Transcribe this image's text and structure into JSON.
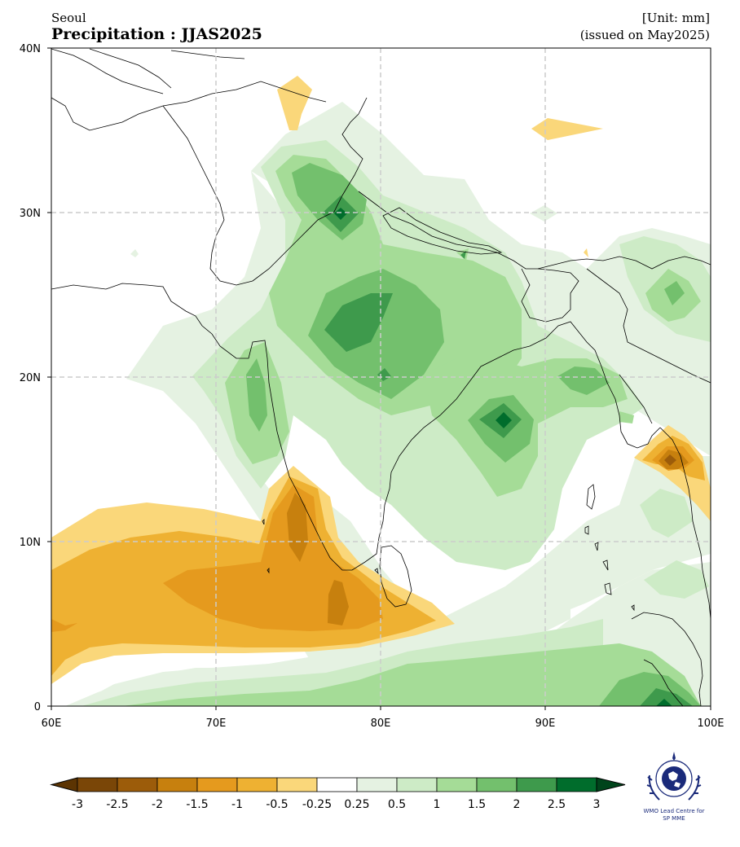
{
  "header": {
    "location": "Seoul",
    "title": "Precipitation : JJAS2025",
    "unit": "[Unit: mm]",
    "issued": "(issued on May2025)"
  },
  "map": {
    "lon_range": [
      60,
      100
    ],
    "lat_range": [
      0,
      40
    ],
    "x_ticks": [
      "60E",
      "70E",
      "80E",
      "90E",
      "100E"
    ],
    "y_ticks": [
      "0",
      "10N",
      "20N",
      "30N",
      "40N"
    ],
    "grid": "dashed"
  },
  "colorbar": {
    "labels": [
      "-3",
      "-2.5",
      "-2",
      "-1.5",
      "-1",
      "-0.5",
      "-0.25",
      "0.25",
      "0.5",
      "1",
      "1.5",
      "2",
      "2.5",
      "3"
    ],
    "colors": [
      "#7a4607",
      "#9c5c0a",
      "#c7800e",
      "#e59a1e",
      "#eeb132",
      "#fad77a",
      "#ffffff",
      "#e5f2e2",
      "#cdebc6",
      "#a5dc97",
      "#73c06d",
      "#3e9a4c",
      "#006d2c"
    ],
    "low_arrow_color": "#5c3402",
    "high_arrow_color": "#00441b"
  },
  "logo": {
    "line1": "WMO Lead Centre for",
    "line2": "SP MME"
  }
}
